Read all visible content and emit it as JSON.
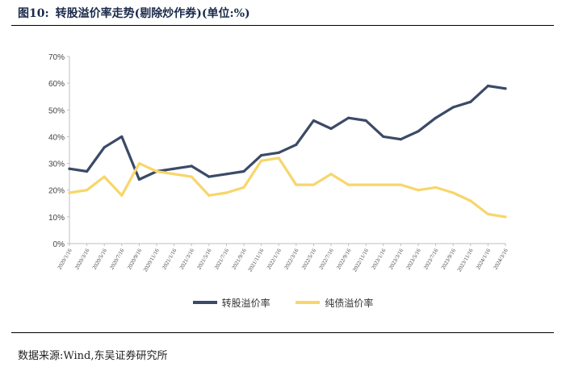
{
  "header": {
    "figure_label": "图10:",
    "title": "转股溢价率走势(剔除炒作券)(单位:%)"
  },
  "source": "数据来源:Wind,东吴证券研究所",
  "chart_data": {
    "type": "line",
    "title": "",
    "xlabel": "",
    "ylabel": "",
    "ylim": [
      0,
      70
    ],
    "yticks": [
      "0%",
      "10%",
      "20%",
      "30%",
      "40%",
      "50%",
      "60%",
      "70%"
    ],
    "grid": false,
    "legend_position": "bottom",
    "xticks": [
      "2020/1/16",
      "2020/3/16",
      "2020/5/16",
      "2020/7/16",
      "2020/9/16",
      "2020/11/16",
      "2021/1/16",
      "2021/3/16",
      "2021/5/16",
      "2021/7/16",
      "2021/9/16",
      "2021/11/16",
      "2022/1/16",
      "2022/3/16",
      "2022/5/16",
      "2022/7/16",
      "2022/9/16",
      "2022/11/16",
      "2023/1/16",
      "2023/3/16",
      "2023/5/16",
      "2023/7/16",
      "2023/9/16",
      "2023/11/16",
      "2024/1/16",
      "2024/3/16"
    ],
    "x": [
      "2020/1/16",
      "2020/3/16",
      "2020/5/16",
      "2020/7/16",
      "2020/9/16",
      "2020/11/16",
      "2021/1/16",
      "2021/3/16",
      "2021/5/16",
      "2021/7/16",
      "2021/9/16",
      "2021/11/16",
      "2022/1/16",
      "2022/3/16",
      "2022/5/16",
      "2022/7/16",
      "2022/9/16",
      "2022/11/16",
      "2023/1/16",
      "2023/3/16",
      "2023/5/16",
      "2023/7/16",
      "2023/9/16",
      "2023/11/16",
      "2024/1/16",
      "2024/3/16"
    ],
    "series": [
      {
        "name": "转股溢价率",
        "color": "#3b4a66",
        "values": [
          28,
          27,
          36,
          40,
          24,
          27,
          28,
          29,
          25,
          26,
          27,
          33,
          34,
          37,
          46,
          43,
          47,
          46,
          40,
          39,
          42,
          47,
          51,
          53,
          59,
          58
        ]
      },
      {
        "name": "纯债溢价率",
        "color": "#f7d66b",
        "values": [
          19,
          20,
          25,
          18,
          30,
          27,
          26,
          25,
          18,
          19,
          21,
          31,
          32,
          22,
          22,
          26,
          22,
          22,
          22,
          22,
          20,
          21,
          19,
          16,
          11,
          10
        ]
      }
    ]
  }
}
